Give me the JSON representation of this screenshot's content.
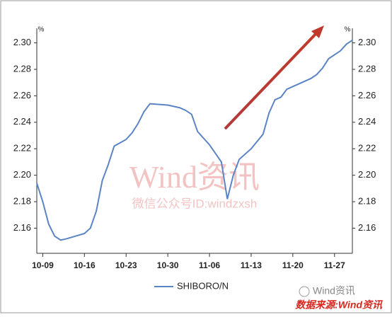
{
  "chart_data": {
    "type": "line",
    "x": [
      "10-08",
      "10-09",
      "10-10",
      "10-11",
      "10-12",
      "10-13",
      "10-16",
      "10-17",
      "10-18",
      "10-19",
      "10-20",
      "10-21",
      "10-23",
      "10-24",
      "10-25",
      "10-26",
      "10-27",
      "10-30",
      "11-01",
      "11-02",
      "11-03",
      "11-04",
      "11-06",
      "11-08",
      "11-09",
      "11-10",
      "11-11",
      "11-13",
      "11-15",
      "11-16",
      "11-17",
      "11-18",
      "11-19",
      "11-21",
      "11-23",
      "11-24",
      "11-25",
      "11-26",
      "11-28",
      "11-29",
      "11-30"
    ],
    "series": [
      {
        "name": "SHIBORO/N",
        "color": "#5b84c4",
        "values": [
          2.194,
          2.18,
          2.163,
          2.154,
          2.151,
          2.152,
          2.156,
          2.16,
          2.173,
          2.196,
          2.208,
          2.222,
          2.227,
          2.232,
          2.239,
          2.248,
          2.254,
          2.253,
          2.251,
          2.249,
          2.246,
          2.233,
          2.223,
          2.21,
          2.182,
          2.2,
          2.212,
          2.22,
          2.231,
          2.247,
          2.257,
          2.259,
          2.265,
          2.269,
          2.273,
          2.276,
          2.281,
          2.288,
          2.294,
          2.299,
          2.302
        ]
      }
    ],
    "xlim": [
      "10-08",
      "11-30"
    ],
    "xticks": [
      "10-09",
      "10-16",
      "10-23",
      "10-30",
      "11-06",
      "11-13",
      "11-20",
      "11-27"
    ],
    "ylim": [
      2.141,
      2.311
    ],
    "yticks": [
      2.16,
      2.18,
      {
        "value": 2.2,
        "label": "2.20"
      },
      2.22,
      2.24,
      2.26,
      2.28,
      {
        "value": 2.3,
        "label": "2.30"
      }
    ],
    "y2lim": [
      2.141,
      2.311
    ],
    "y2ticks": [
      2.16,
      2.18,
      {
        "value": 2.2,
        "label": "2.20"
      },
      2.22,
      2.24,
      2.26,
      2.28,
      {
        "value": 2.3,
        "label": "2.30"
      }
    ],
    "ylabel": "%",
    "y2label": "%",
    "watermark": [
      "Wind资讯",
      "微信公众号ID:windzxsh"
    ],
    "logo_text": "Wind资讯",
    "source": "数据来源:Wind资讯"
  }
}
